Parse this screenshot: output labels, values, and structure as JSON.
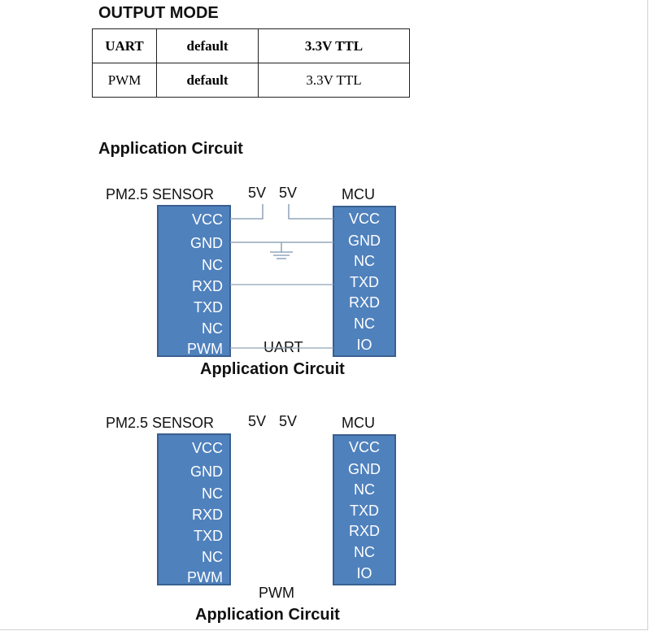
{
  "output_mode": {
    "title": "OUTPUT MODE",
    "rows": [
      [
        "UART",
        "default",
        "3.3V TTL"
      ],
      [
        "PWM",
        "default",
        "3.3V TTL"
      ]
    ]
  },
  "section_title": "Application Circuit",
  "diagrams": [
    {
      "sensor_title": "PM2.5 SENSOR",
      "sensor_pins": [
        "VCC",
        "GND",
        "NC",
        "RXD",
        "TXD",
        "NC",
        "PWM"
      ],
      "mcu_title": "MCU",
      "mcu_pins": [
        "VCC",
        "GND",
        "NC",
        "TXD",
        "RXD",
        "NC",
        "IO"
      ],
      "supply_left": "5V",
      "supply_right": "5V",
      "mode_label": "UART",
      "caption": "Application Circuit"
    },
    {
      "sensor_title": "PM2.5 SENSOR",
      "sensor_pins": [
        "VCC",
        "GND",
        "NC",
        "RXD",
        "TXD",
        "NC",
        "PWM"
      ],
      "mcu_title": "MCU",
      "mcu_pins": [
        "VCC",
        "GND",
        "NC",
        "TXD",
        "RXD",
        "NC",
        "IO"
      ],
      "supply_left": "5V",
      "supply_right": "5V",
      "mode_label": "PWM",
      "caption": "Application Circuit"
    }
  ],
  "colors": {
    "chip_fill": "#4f81bd",
    "chip_border": "#3a5f8f",
    "chip_text": "#ffffff",
    "wire": "#8fa3b8"
  }
}
